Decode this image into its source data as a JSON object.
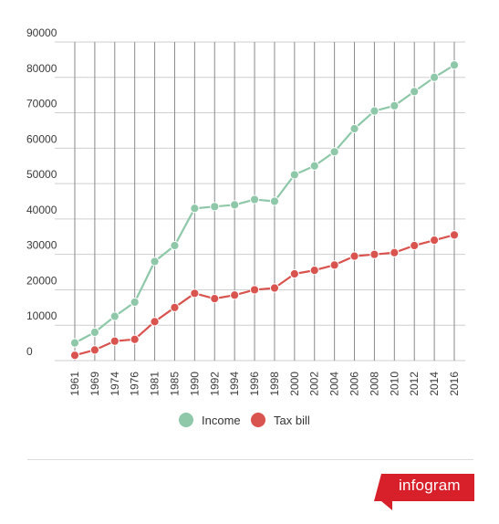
{
  "chart_data": {
    "type": "line",
    "title": "",
    "xlabel": "",
    "ylabel": "",
    "categories": [
      "1961",
      "1969",
      "1974",
      "1976",
      "1981",
      "1985",
      "1990",
      "1992",
      "1994",
      "1996",
      "1998",
      "2000",
      "2002",
      "2004",
      "2006",
      "2008",
      "2010",
      "2012",
      "2014",
      "2016"
    ],
    "ylim": [
      0,
      90000
    ],
    "yticks": [
      "90000",
      "80000",
      "70000",
      "60000",
      "50000",
      "40000",
      "30000",
      "20000",
      "10000",
      "0"
    ],
    "grid": true,
    "legend_position": "bottom",
    "series": [
      {
        "name": "Income",
        "color": "#8ec8a8",
        "values": [
          5000,
          8000,
          12500,
          16500,
          28000,
          32500,
          43000,
          43500,
          44000,
          45500,
          45000,
          52500,
          55000,
          59000,
          65500,
          70500,
          72000,
          76000,
          80000,
          83500
        ]
      },
      {
        "name": "Tax bill",
        "color": "#d9534f",
        "values": [
          1500,
          3000,
          5500,
          6000,
          11000,
          15000,
          19000,
          17500,
          18500,
          20000,
          20500,
          24500,
          25500,
          27000,
          29500,
          30000,
          30500,
          32500,
          34000,
          35500
        ]
      }
    ]
  },
  "brand": {
    "text": "infogram",
    "color": "#d7202a"
  }
}
